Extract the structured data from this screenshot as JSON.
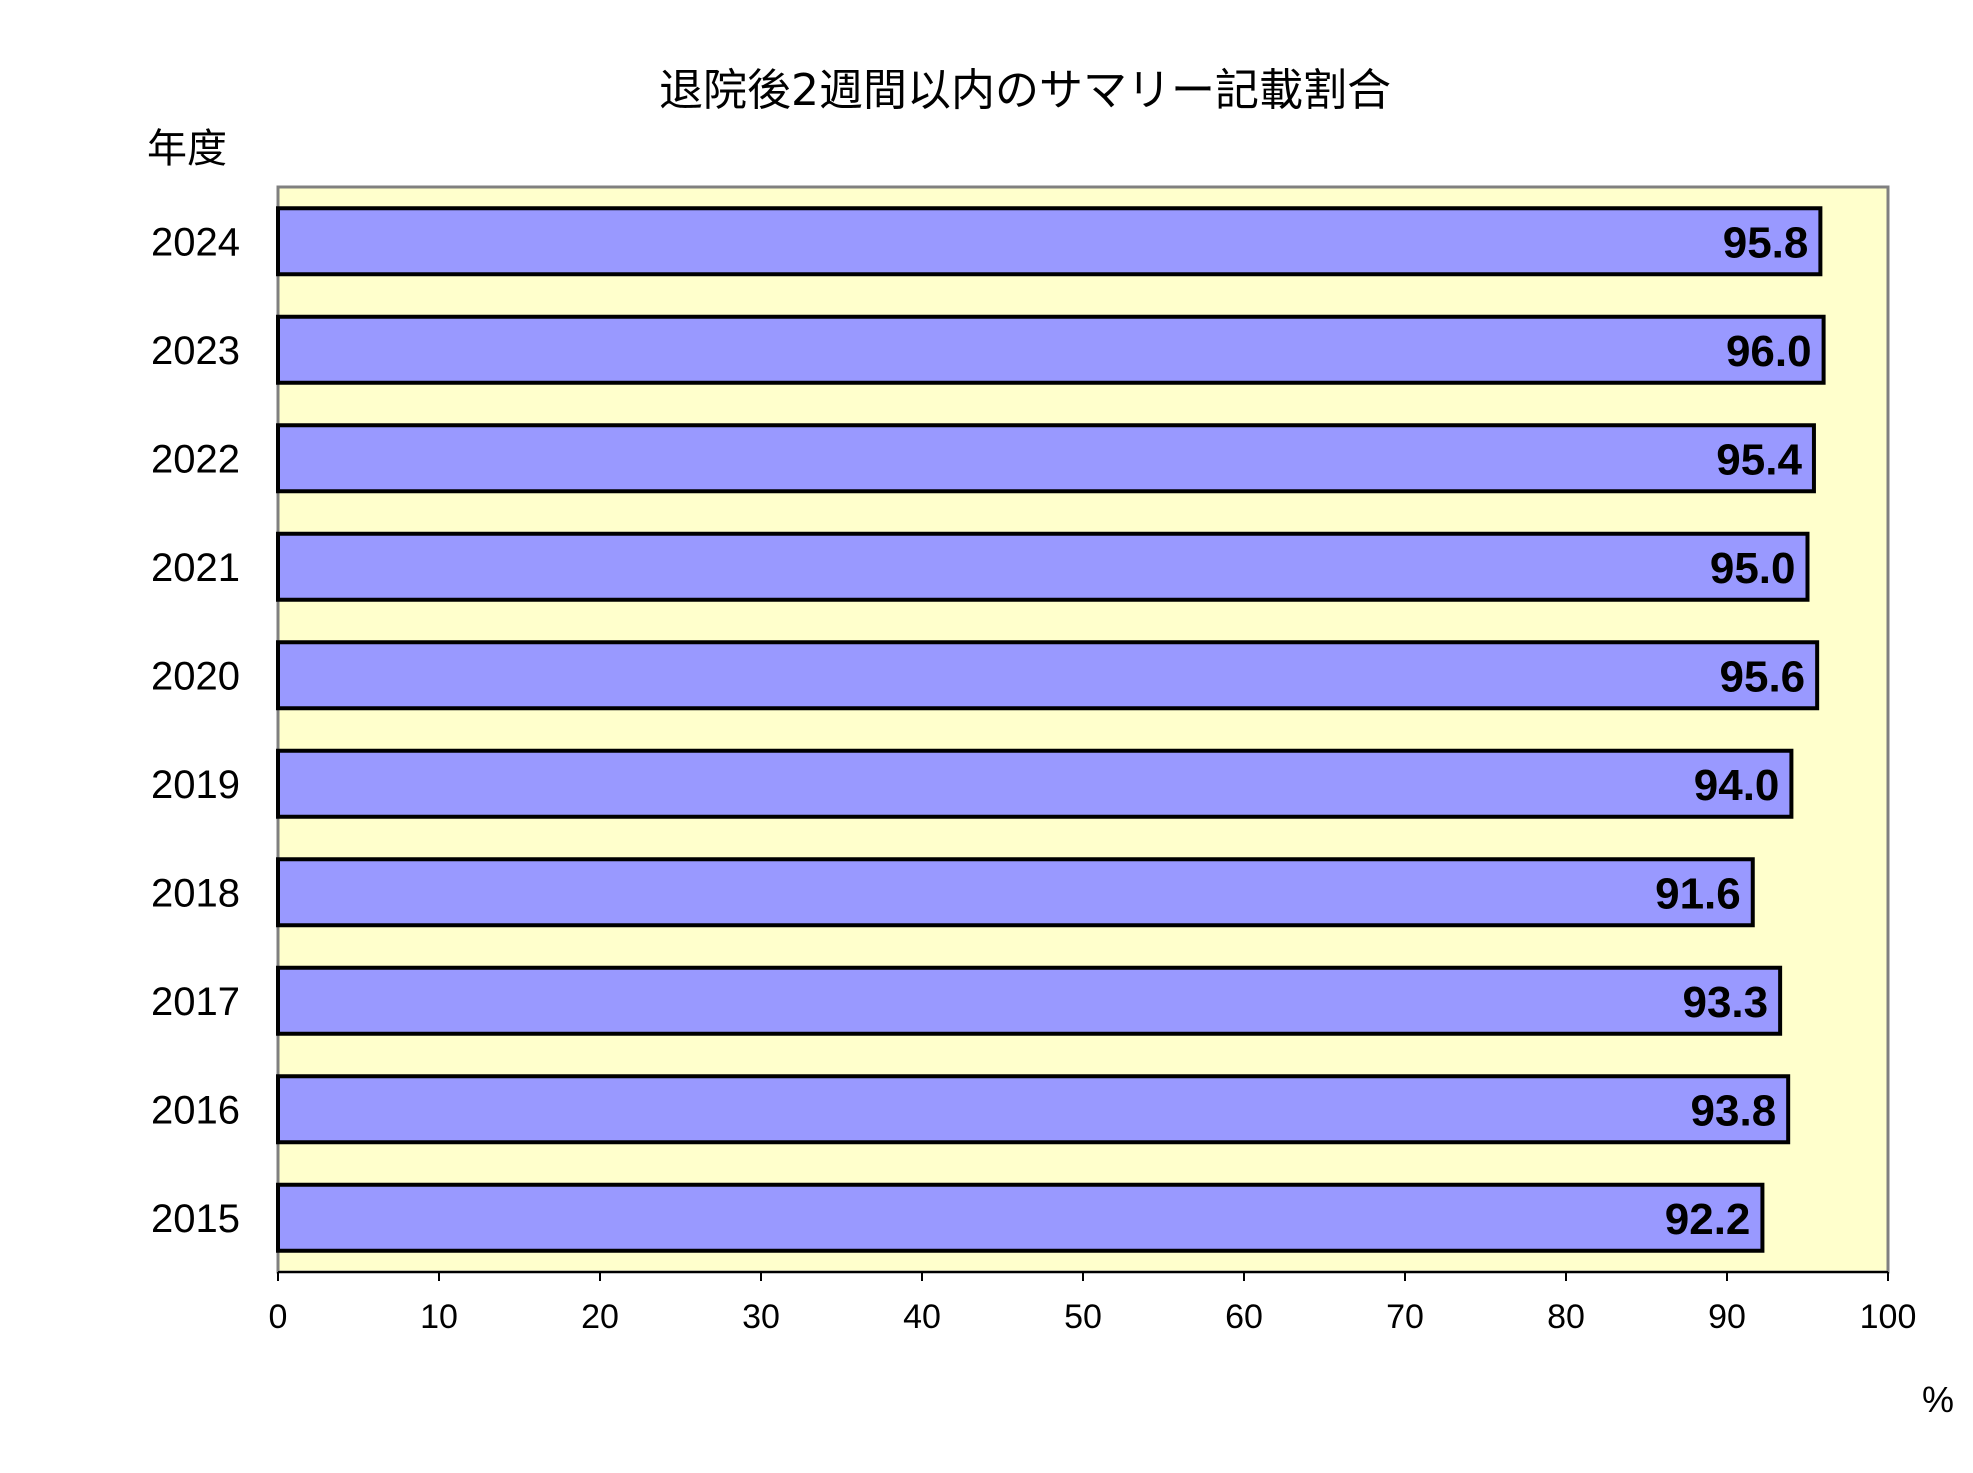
{
  "chart_data": {
    "type": "bar",
    "orientation": "horizontal",
    "title": "退院後2週間以内のサマリー記載割合",
    "ylabel": "年度",
    "xunit": "%",
    "categories": [
      "2024",
      "2023",
      "2022",
      "2021",
      "2020",
      "2019",
      "2018",
      "2017",
      "2016",
      "2015"
    ],
    "values": [
      95.8,
      96.0,
      95.4,
      95.0,
      95.6,
      94.0,
      91.6,
      93.3,
      93.8,
      92.2
    ],
    "value_labels": [
      "95.8",
      "96.0",
      "95.4",
      "95.0",
      "95.6",
      "94.0",
      "91.6",
      "93.3",
      "93.8",
      "92.2"
    ],
    "xlim": [
      0,
      100
    ],
    "xticks": [
      "0",
      "10",
      "20",
      "30",
      "40",
      "50",
      "60",
      "70",
      "80",
      "90",
      "100"
    ],
    "grid": false,
    "colors": {
      "bar": "#9999ff",
      "plot_background": "#ffffcc",
      "bar_border": "#000000",
      "frame": "#808080"
    }
  }
}
